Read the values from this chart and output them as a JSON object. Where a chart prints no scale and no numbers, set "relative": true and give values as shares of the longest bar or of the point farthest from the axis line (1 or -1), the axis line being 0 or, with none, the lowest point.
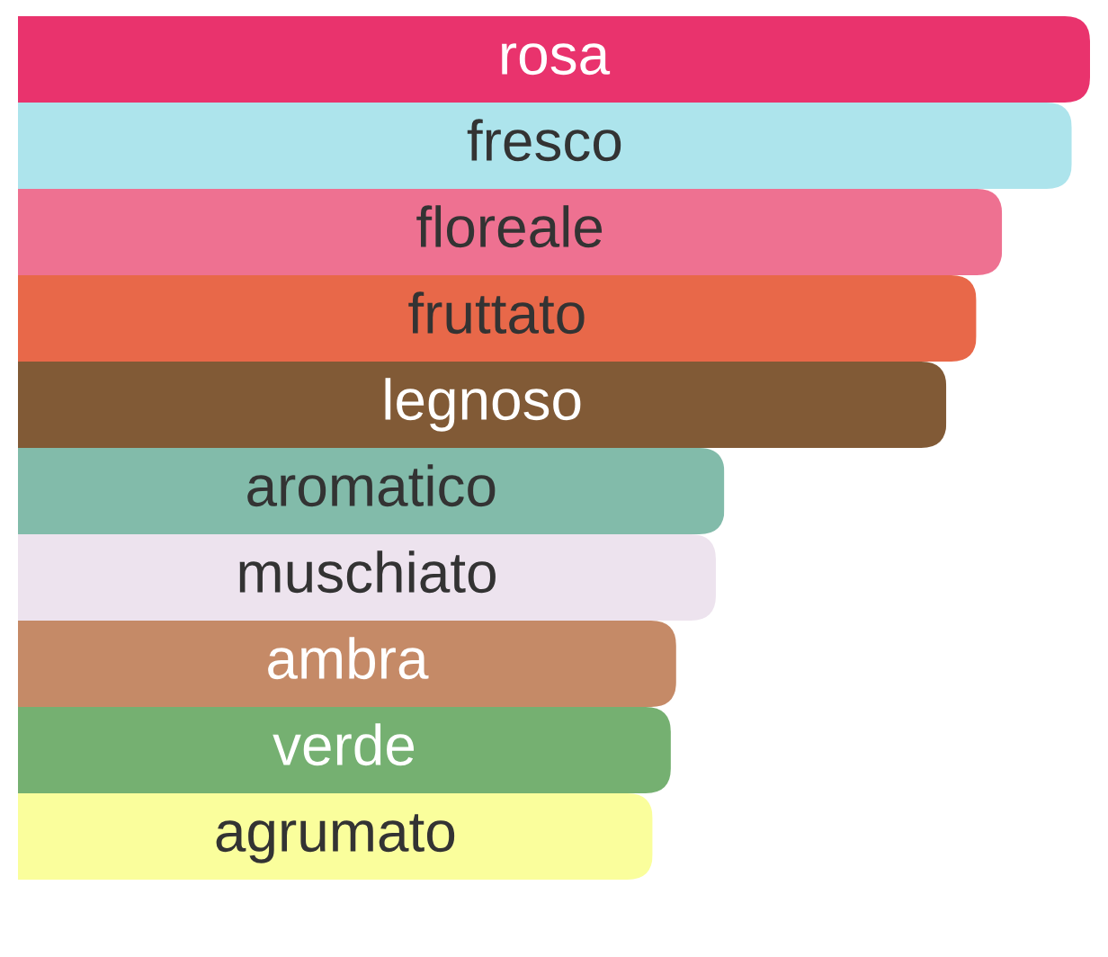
{
  "chart_data": {
    "type": "bar",
    "orientation": "horizontal",
    "relative": true,
    "categories": [
      "rosa",
      "fresco",
      "floreale",
      "fruttato",
      "legnoso",
      "aromatico",
      "muschiato",
      "ambra",
      "verde",
      "agrumato"
    ],
    "values": [
      1,
      0.983,
      0.918,
      0.894,
      0.866,
      0.659,
      0.651,
      0.614,
      0.609,
      0.592
    ],
    "colors": [
      "#e9336d",
      "#ade4ec",
      "#ee7191",
      "#e86849",
      "#815a36",
      "#82bbaa",
      "#ede3ee",
      "#c58a67",
      "#75b071",
      "#fafe9c"
    ]
  }
}
